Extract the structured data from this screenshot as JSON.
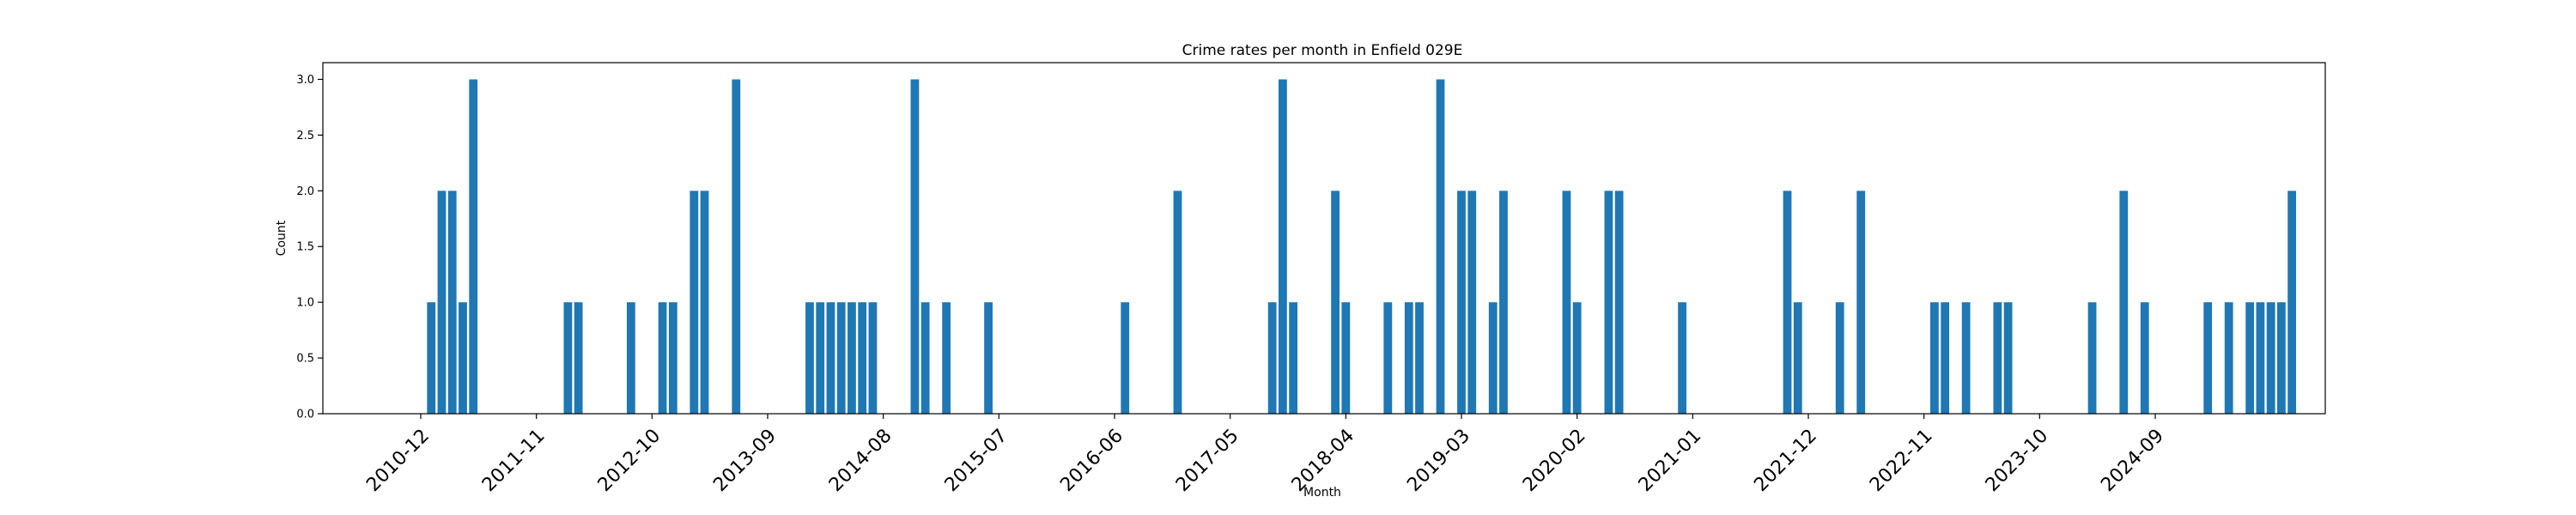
{
  "chart_data": {
    "type": "bar",
    "title": "Crime rates per month in Enfield 029E",
    "xlabel": "Month",
    "ylabel": "Count",
    "ylim": [
      0,
      3.15
    ],
    "yticks": [
      "0.0",
      "0.5",
      "1.0",
      "1.5",
      "2.0",
      "2.5",
      "3.0"
    ],
    "grid": false,
    "xticks": [
      "2010-12",
      "2011-11",
      "2012-10",
      "2013-09",
      "2014-08",
      "2015-07",
      "2016-06",
      "2017-05",
      "2018-04",
      "2019-03",
      "2020-02",
      "2021-01",
      "2021-12",
      "2022-11",
      "2023-10",
      "2024-09"
    ],
    "color": "#1f77b4",
    "x": [
      "2011-01",
      "2011-02",
      "2011-03",
      "2011-04",
      "2011-05",
      "2012-02",
      "2012-03",
      "2012-08",
      "2012-11",
      "2012-12",
      "2013-02",
      "2013-03",
      "2013-06",
      "2014-01",
      "2014-02",
      "2014-03",
      "2014-04",
      "2014-05",
      "2014-06",
      "2014-07",
      "2014-11",
      "2014-12",
      "2015-02",
      "2015-06",
      "2016-07",
      "2016-12",
      "2017-09",
      "2017-10",
      "2017-11",
      "2018-03",
      "2018-04",
      "2018-08",
      "2018-10",
      "2018-11",
      "2019-01",
      "2019-03",
      "2019-04",
      "2019-06",
      "2019-07",
      "2020-01",
      "2020-02",
      "2020-05",
      "2020-06",
      "2020-12",
      "2021-10",
      "2021-11",
      "2022-03",
      "2022-05",
      "2022-12",
      "2023-01",
      "2023-03",
      "2023-06",
      "2023-07",
      "2024-03",
      "2024-06",
      "2024-08",
      "2025-02",
      "2025-04",
      "2025-06",
      "2025-07",
      "2025-08",
      "2025-09",
      "2025-10"
    ],
    "values": [
      1,
      2,
      2,
      1,
      3,
      1,
      1,
      1,
      1,
      1,
      2,
      2,
      3,
      1,
      1,
      1,
      1,
      1,
      1,
      1,
      3,
      1,
      1,
      1,
      1,
      2,
      1,
      3,
      1,
      2,
      1,
      1,
      1,
      1,
      3,
      2,
      2,
      1,
      2,
      2,
      1,
      2,
      2,
      1,
      2,
      1,
      1,
      2,
      1,
      1,
      1,
      1,
      1,
      1,
      2,
      1,
      1,
      1,
      1,
      1,
      1,
      1,
      2
    ]
  }
}
